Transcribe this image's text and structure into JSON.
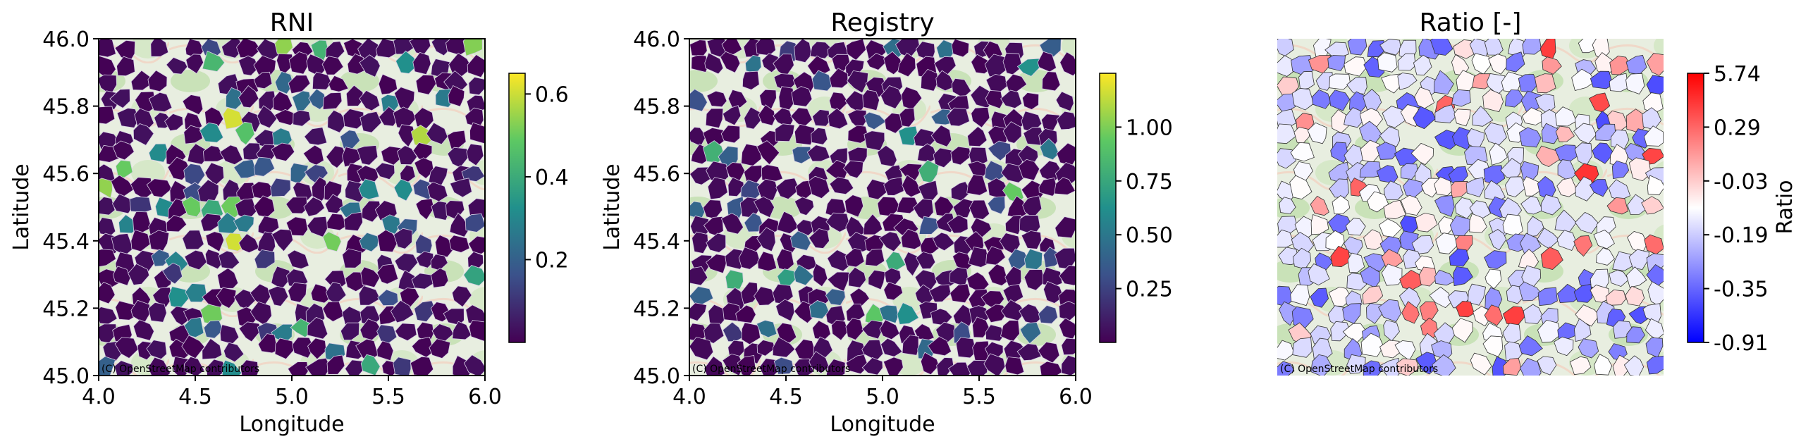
{
  "attribution": "(C) OpenStreetMap contributors",
  "chart_data": [
    {
      "type": "heatmap",
      "title": "RNI",
      "xlabel": "Longitude",
      "ylabel": "Latitude",
      "xlim": [
        4.0,
        6.0
      ],
      "ylim": [
        45.0,
        46.0
      ],
      "xticks": [
        "4.0",
        "4.5",
        "5.0",
        "5.5",
        "6.0"
      ],
      "yticks": [
        "45.0",
        "45.2",
        "45.4",
        "45.6",
        "45.8",
        "46.0"
      ],
      "colormap": "viridis",
      "colorbar": {
        "range": [
          0.0,
          0.65
        ],
        "ticks": [
          "0.2",
          "0.4",
          "0.6"
        ]
      }
    },
    {
      "type": "heatmap",
      "title": "Registry",
      "xlabel": "Longitude",
      "ylabel": "Latitude",
      "xlim": [
        4.0,
        6.0
      ],
      "ylim": [
        45.0,
        46.0
      ],
      "xticks": [
        "4.0",
        "4.5",
        "5.0",
        "5.5",
        "6.0"
      ],
      "yticks": [
        "45.0",
        "45.2",
        "45.4",
        "45.6",
        "45.8",
        "46.0"
      ],
      "colormap": "viridis",
      "colorbar": {
        "range": [
          0.0,
          1.25
        ],
        "ticks": [
          "0.25",
          "0.50",
          "0.75",
          "1.00"
        ]
      }
    },
    {
      "type": "heatmap",
      "title": "Ratio [-]",
      "colormap": "bwr",
      "colorbar": {
        "label": "Ratio",
        "ticks": [
          "5.74",
          "0.29",
          "-0.03",
          "-0.19",
          "-0.35",
          "-0.91"
        ]
      }
    }
  ],
  "colors": {
    "viridis_low": "#440154",
    "viridis_mid": "#21908c",
    "viridis_high": "#fde725",
    "ratio_low": "#0000ff",
    "ratio_mid": "#ffffff",
    "ratio_high": "#ff0000",
    "basemap_green": "#c9e2b8"
  }
}
